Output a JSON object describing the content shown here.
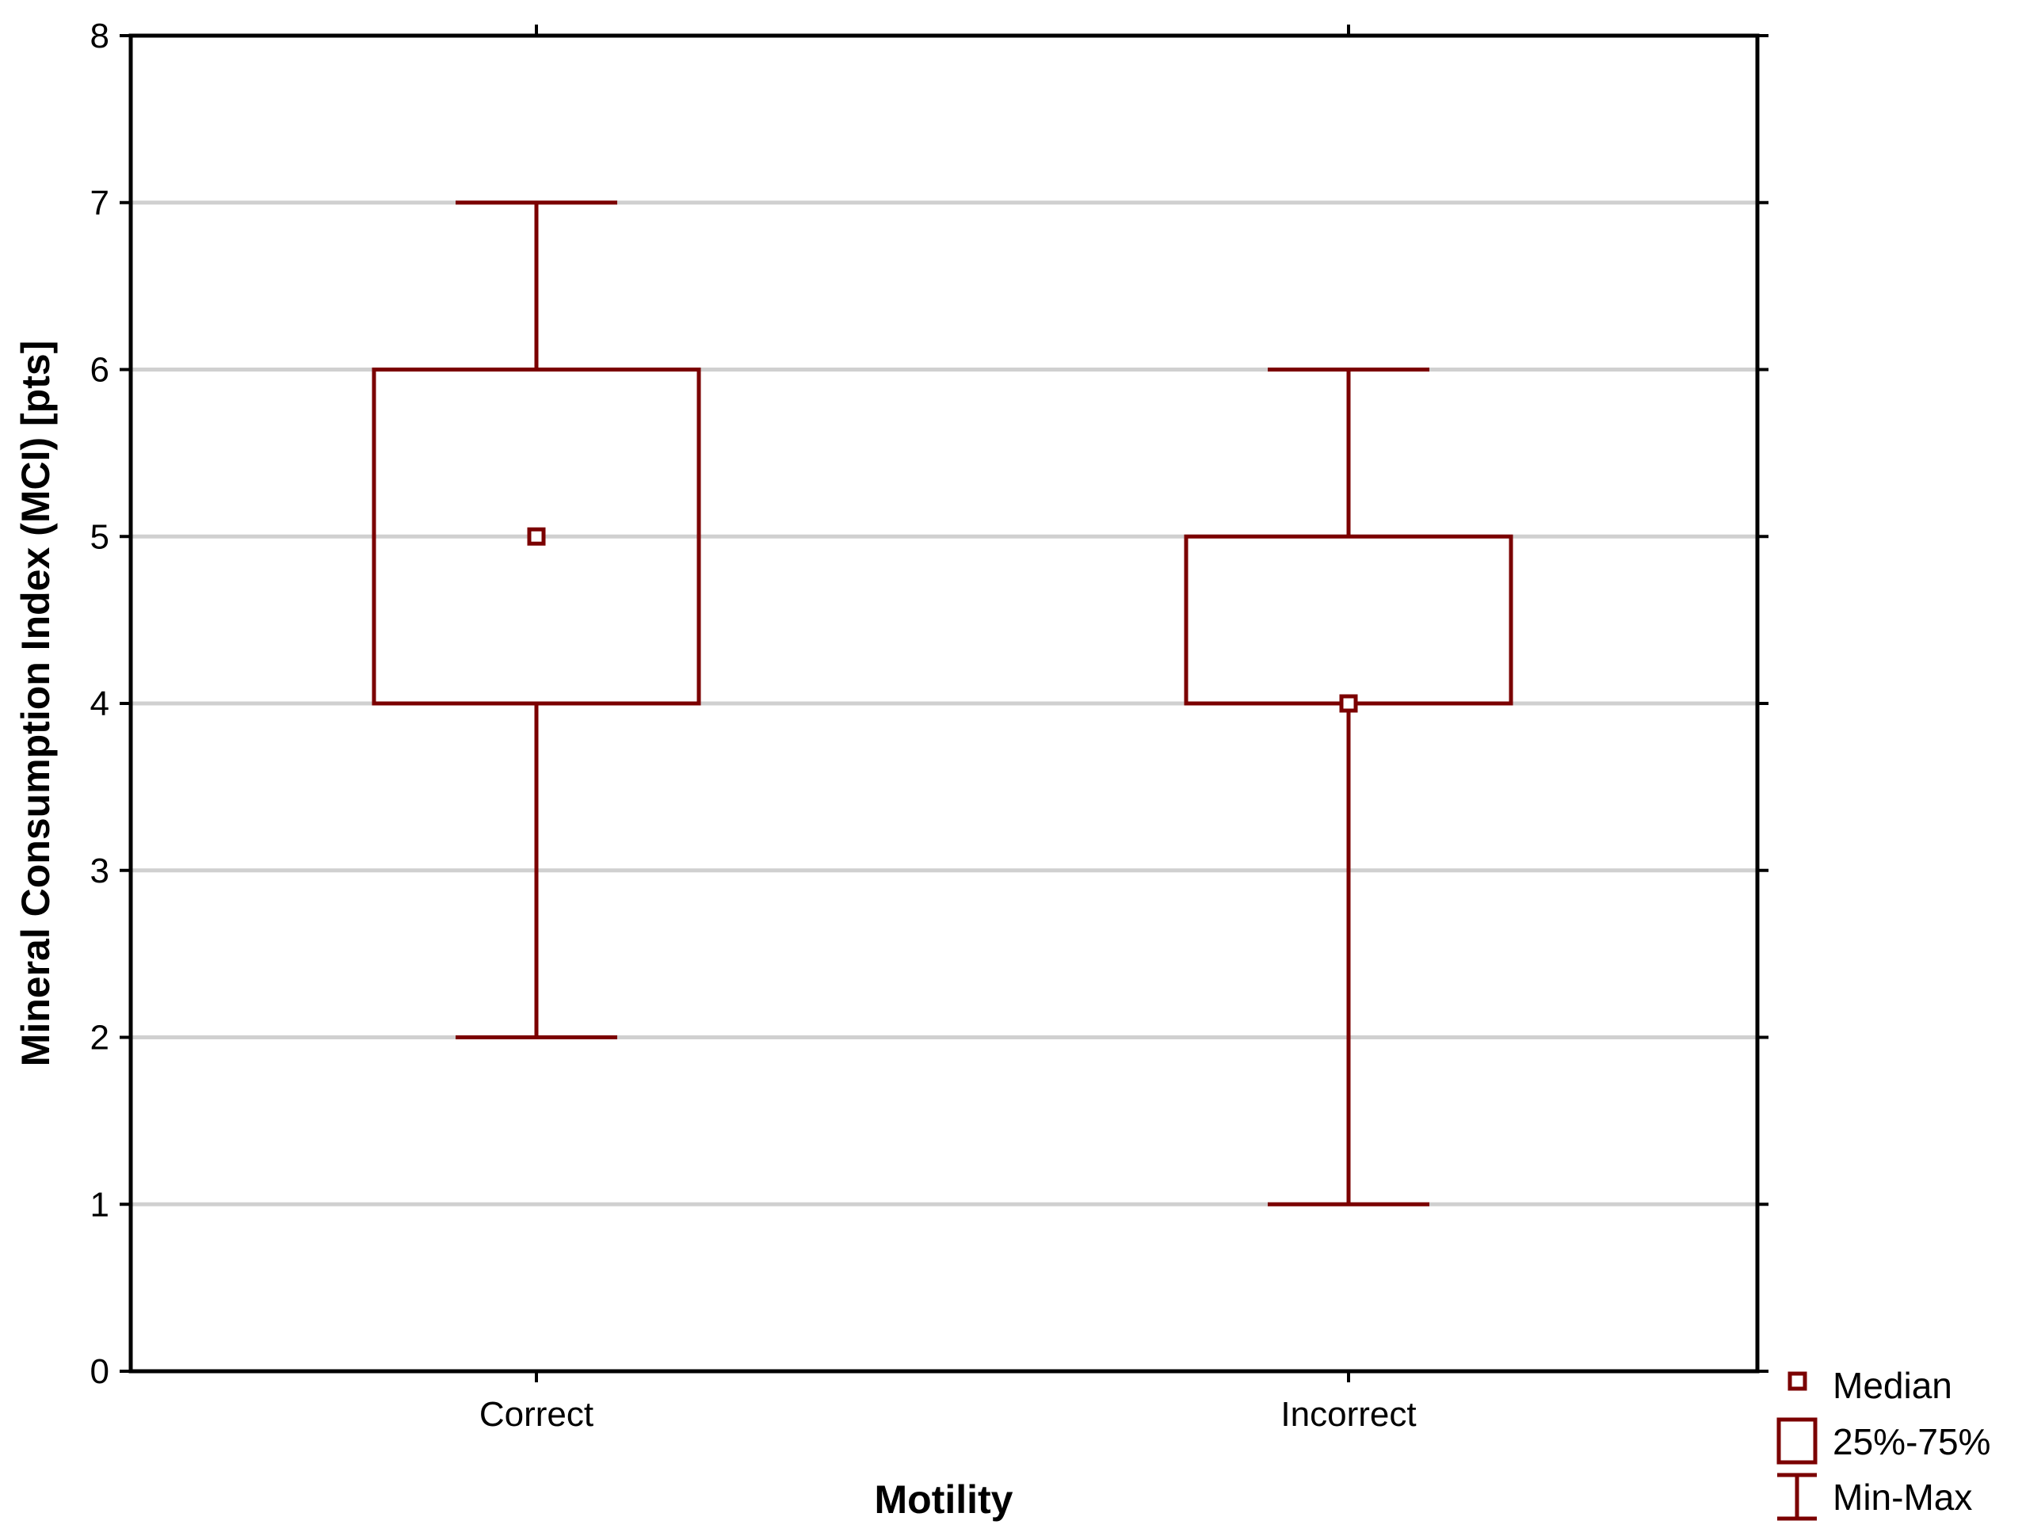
{
  "chart_data": {
    "type": "boxplot",
    "xlabel": "Motility",
    "ylabel": "Mineral Consumption Index (MCI) [pts]",
    "ylim": [
      0,
      8
    ],
    "yticks": [
      0,
      1,
      2,
      3,
      4,
      5,
      6,
      7,
      8
    ],
    "grid": true,
    "categories": [
      "Correct",
      "Incorrect"
    ],
    "boxes": [
      {
        "category": "Correct",
        "median": 5,
        "q1": 4,
        "q3": 6,
        "min": 2,
        "max": 7
      },
      {
        "category": "Incorrect",
        "median": 4,
        "q1": 4,
        "q3": 5,
        "min": 1,
        "max": 6
      }
    ],
    "legend": {
      "position": "bottom-right",
      "entries": [
        "Median",
        "25%-75%",
        "Min-Max"
      ]
    },
    "colors": {
      "series": "#7b0000",
      "grid": "#d0d0d0",
      "axes": "#000000"
    }
  }
}
